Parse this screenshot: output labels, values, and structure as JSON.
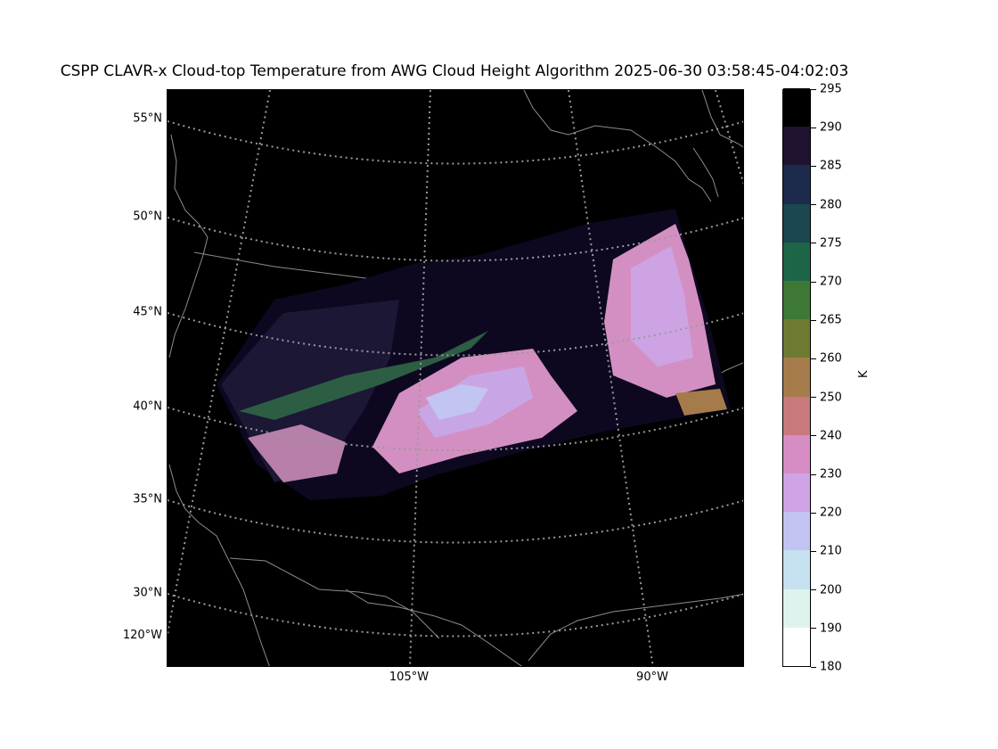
{
  "title": "CSPP CLAVR-x Cloud-top Temperature from AWG Cloud Height Algorithm 2025-06-30 03:58:45-04:02:03",
  "map": {
    "lat_labels": [
      "55°N",
      "50°N",
      "45°N",
      "40°N",
      "35°N",
      "30°N"
    ],
    "lon_labels": [
      "120°W",
      "105°W",
      "90°W"
    ],
    "background_color": "#000000",
    "graticule_color": "#9a9a9a",
    "coastline_color": "#8c8c8c"
  },
  "colorbar": {
    "unit": "K",
    "ticks": [
      "180",
      "190",
      "200",
      "210",
      "220",
      "230",
      "240",
      "250",
      "260",
      "265",
      "270",
      "275",
      "280",
      "285",
      "290",
      "295"
    ],
    "colors": [
      "#ffffff",
      "#dff3ee",
      "#c6e1ef",
      "#c3c3f3",
      "#cfa3e6",
      "#d58dc3",
      "#c8797b",
      "#a67b4b",
      "#6e7a31",
      "#3d7835",
      "#1d6548",
      "#1a4750",
      "#1c2a4c",
      "#1e1230",
      "#000000"
    ]
  }
}
